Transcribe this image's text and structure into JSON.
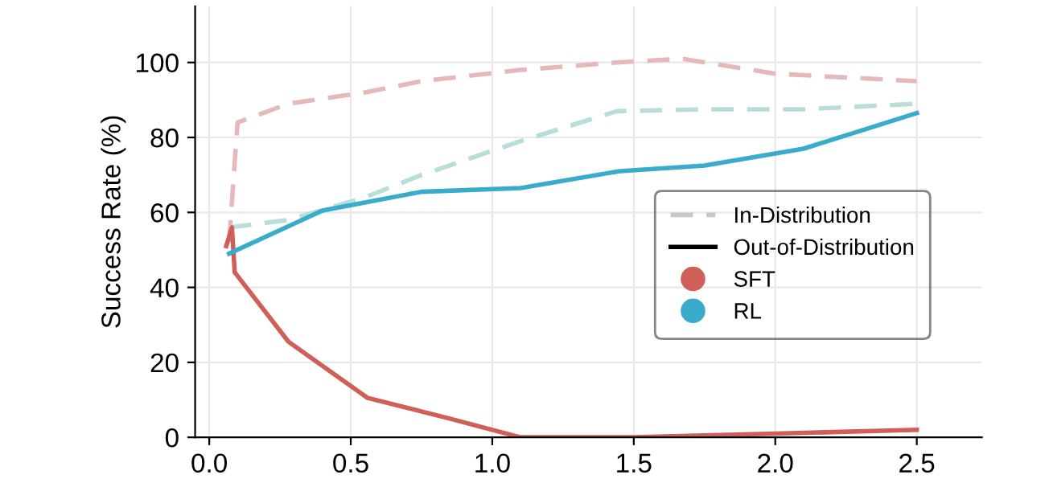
{
  "chart_data": {
    "type": "line",
    "ylabel": "Success Rate (%)",
    "xlim": [
      -0.05,
      2.73
    ],
    "ylim": [
      0,
      115
    ],
    "xticks": [
      {
        "value": 0,
        "label": "0.0"
      },
      {
        "value": 0.5,
        "label": "0.5"
      },
      {
        "value": 1,
        "label": "1.0"
      },
      {
        "value": 1.5,
        "label": "1.5"
      },
      {
        "value": 2,
        "label": "2.0"
      },
      {
        "value": 2.5,
        "label": "2.5"
      }
    ],
    "yticks": [
      0,
      20,
      40,
      60,
      80,
      100
    ],
    "grid": true,
    "legend": "center right",
    "marker": "none",
    "annotations": [
      "In-Distribution",
      "Out-of-Distribution"
    ],
    "series": [
      {
        "color": "#e6b8bc",
        "line_style": "dashed",
        "x": [
          0.07,
          0.1,
          0.28,
          0.55,
          0.75,
          1.1,
          1.44,
          1.67,
          2.0,
          2.5
        ],
        "values": [
          52,
          84,
          89,
          92,
          95,
          98,
          100,
          101,
          97,
          95
        ]
      },
      {
        "color": "#b9ddd9",
        "line_style": "dashed",
        "x": [
          0.07,
          0.28,
          0.55,
          0.75,
          1.1,
          1.44,
          1.75,
          2.1,
          2.5
        ],
        "values": [
          56,
          58,
          64,
          70,
          79,
          87,
          87.5,
          87.5,
          89
        ]
      },
      {
        "name": "SFT",
        "color": "#cf5f58",
        "line_style": "solid",
        "x": [
          0.06,
          0.08,
          0.09,
          0.28,
          0.56,
          0.85,
          1.1,
          1.5,
          2.0,
          2.5
        ],
        "values": [
          51,
          56,
          44,
          25.5,
          10.5,
          5,
          0,
          0,
          1,
          2
        ]
      },
      {
        "name": "RL",
        "color": "#3aaccb",
        "line_style": "solid",
        "x": [
          0.07,
          0.4,
          0.75,
          1.1,
          1.45,
          1.75,
          2.1,
          2.5
        ],
        "values": [
          49,
          60.5,
          65.5,
          66.5,
          71,
          72.5,
          77,
          86.5
        ]
      }
    ]
  }
}
